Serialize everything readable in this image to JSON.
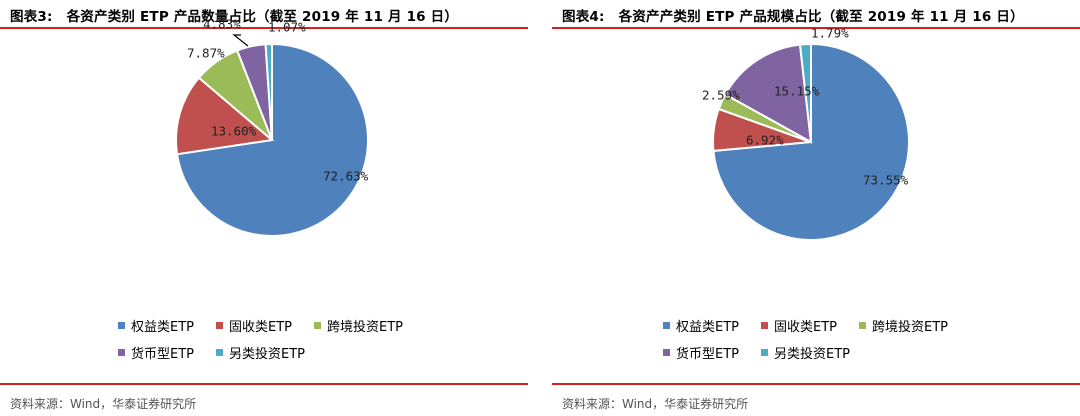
{
  "colors": {
    "accent_rule": "#d81e1e",
    "series": [
      "#4f81bd",
      "#c0504d",
      "#9bbb59",
      "#8064a2",
      "#4bacc6"
    ]
  },
  "charts": [
    {
      "title_prefix": "图表3:",
      "title_text": "各资产类别 ETP 产品数量占比（截至 2019 年 11 月 16 日）",
      "source": "资料来源：Wind，华泰证券研究所"
    },
    {
      "title_prefix": "图表4:",
      "title_text": "各资产产类别 ETP 产品规模占比（截至 2019 年 11 月 16 日）",
      "source": "资料来源：Wind，华泰证券研究所"
    }
  ],
  "chart_data": [
    {
      "type": "pie",
      "title": "各资产类别 ETP 产品数量占比（截至 2019 年 11 月 16 日）",
      "categories": [
        "权益类ETP",
        "固收类ETP",
        "跨境投资ETP",
        "货币型ETP",
        "另类投资ETP"
      ],
      "values": [
        72.63,
        13.6,
        7.87,
        4.83,
        1.07
      ],
      "labels": [
        "72.63%",
        "13.60%",
        "7.87%",
        "4.83%",
        "1.07%"
      ],
      "legend_position": "bottom"
    },
    {
      "type": "pie",
      "title": "各资产产类别 ETP 产品规模占比（截至 2019 年 11 月 16 日）",
      "categories": [
        "权益类ETP",
        "固收类ETP",
        "跨境投资ETP",
        "货币型ETP",
        "另类投资ETP"
      ],
      "values": [
        73.55,
        6.92,
        2.59,
        15.15,
        1.79
      ],
      "labels": [
        "73.55%",
        "6.92%",
        "2.59%",
        "15.15%",
        "1.79%"
      ],
      "legend_position": "bottom"
    }
  ]
}
